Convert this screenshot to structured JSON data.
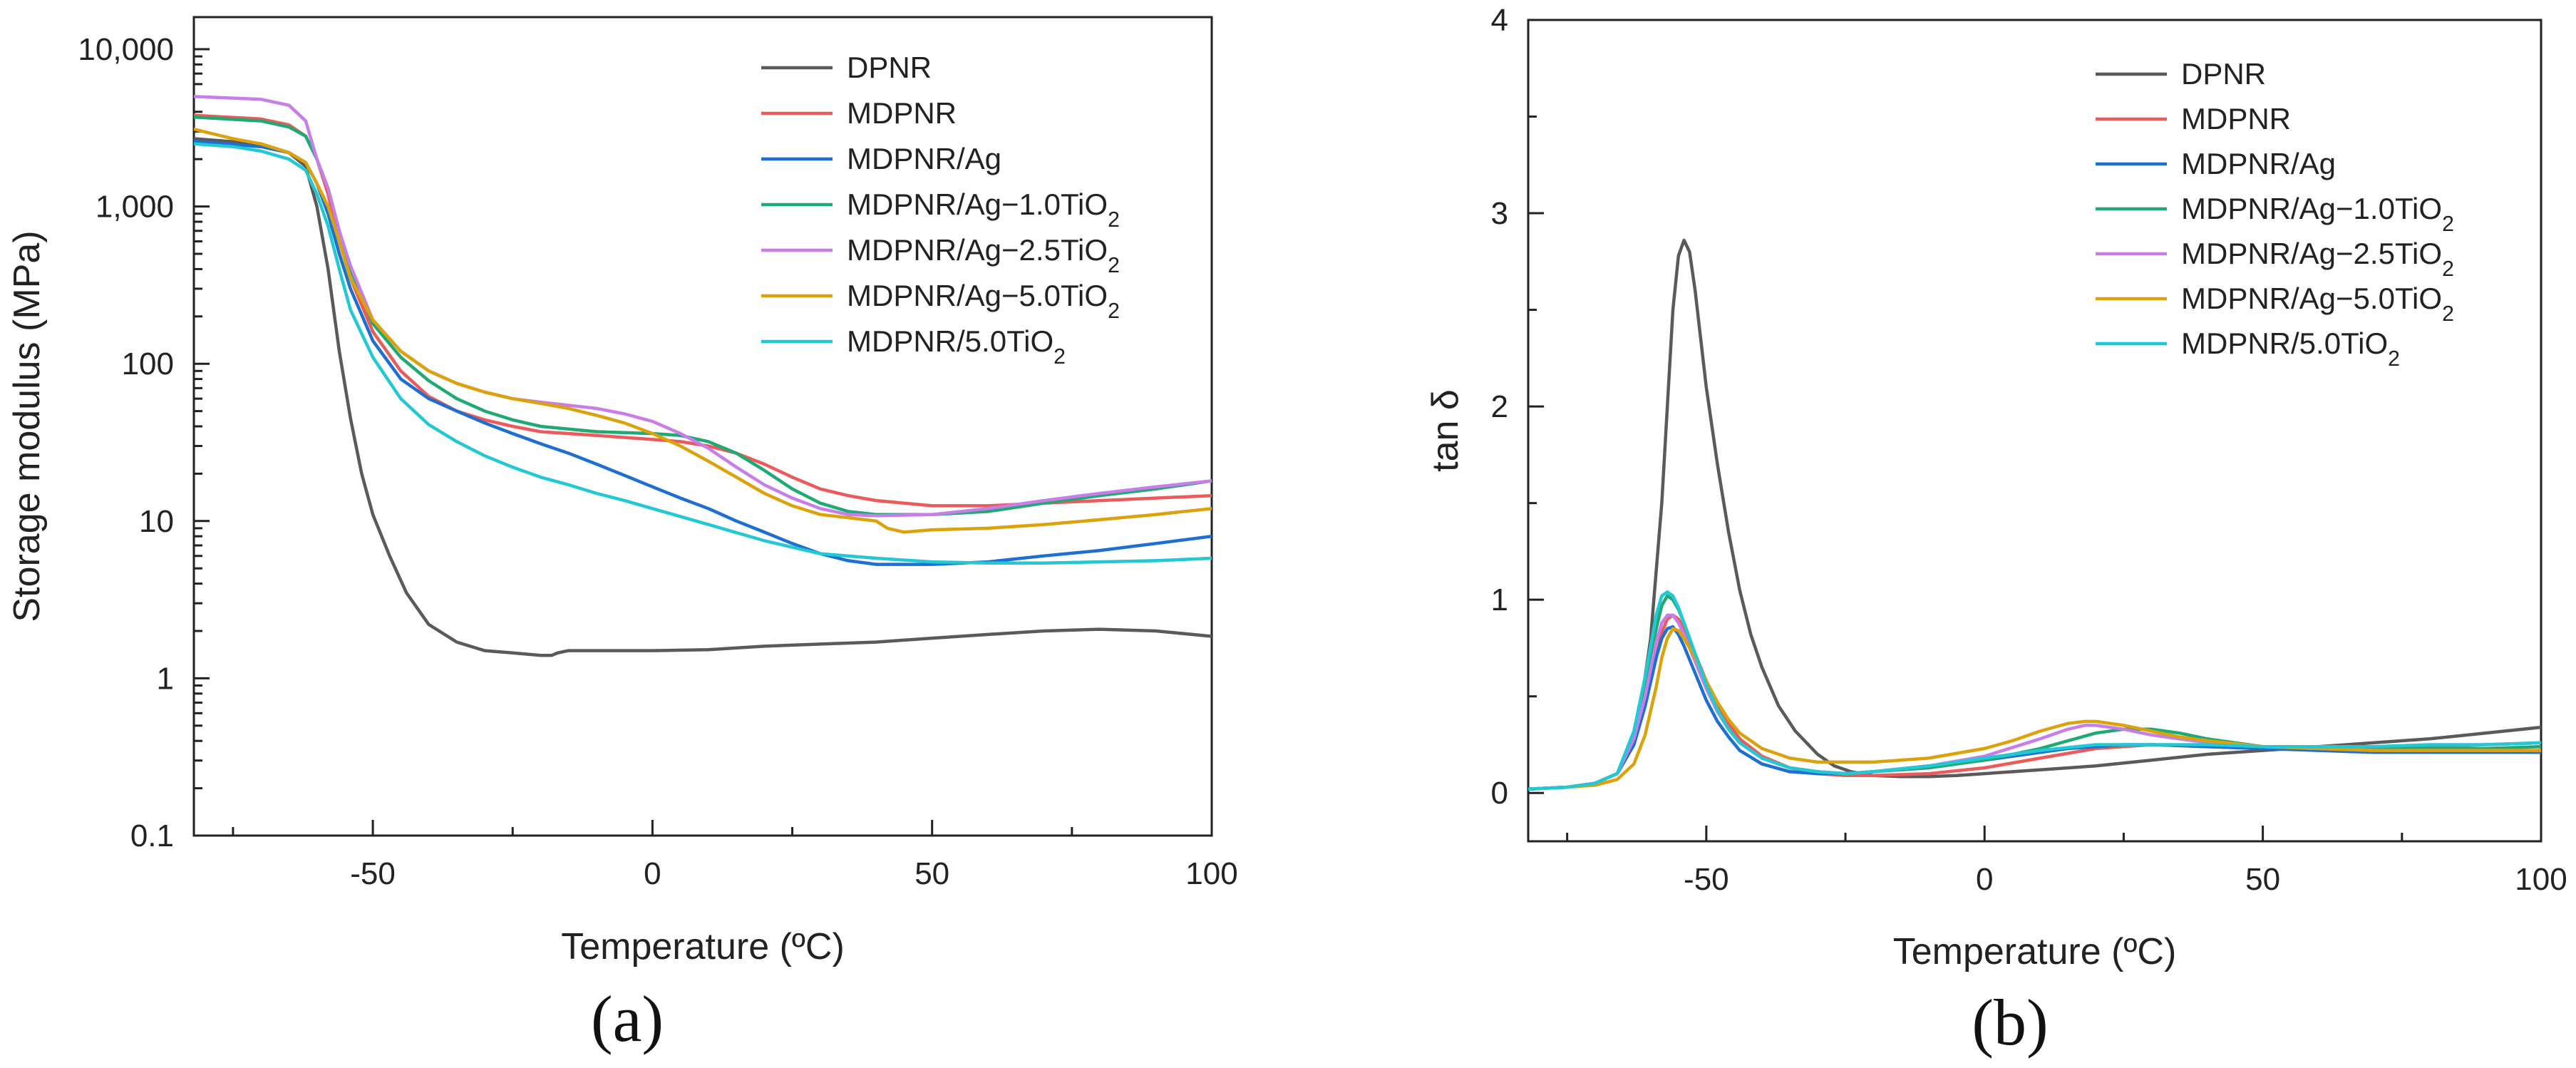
{
  "chart_data": [
    {
      "type": "line",
      "panel_label": "(a)",
      "xlabel": "Temperature (ºC)",
      "ylabel": "Storage modulus (MPa)",
      "xlim": [
        -82,
        100
      ],
      "ylim": [
        0.1,
        16000
      ],
      "yscale": "log",
      "grid": false,
      "legend_position": "top-right",
      "xticks": [
        -50,
        0,
        50,
        100
      ],
      "xtick_labels": [
        "-50",
        "0",
        "50",
        "100"
      ],
      "yticks": [
        0.1,
        1,
        10,
        100,
        1000,
        10000
      ],
      "ytick_labels": [
        "0.1",
        "1",
        "10",
        "100",
        "1,000",
        "10,000"
      ],
      "series": [
        {
          "name": "DPNR",
          "color": "#5a5a5a",
          "x": [
            -82,
            -70,
            -65,
            -62,
            -60,
            -58,
            -56,
            -54,
            -52,
            -50,
            -47,
            -44,
            -40,
            -35,
            -30,
            -25,
            -20,
            -18,
            -17,
            -15,
            -10,
            0,
            10,
            20,
            30,
            40,
            50,
            60,
            70,
            80,
            90,
            100
          ],
          "y": [
            2700,
            2500,
            2200,
            1800,
            1000,
            400,
            120,
            45,
            20,
            11,
            6,
            3.5,
            2.2,
            1.7,
            1.5,
            1.45,
            1.4,
            1.4,
            1.45,
            1.5,
            1.5,
            1.5,
            1.52,
            1.6,
            1.65,
            1.7,
            1.8,
            1.9,
            2.0,
            2.05,
            2.0,
            1.85
          ]
        },
        {
          "name": "MDPNR",
          "color": "#ec5b5b",
          "x": [
            -82,
            -70,
            -65,
            -62,
            -60,
            -58,
            -56,
            -54,
            -50,
            -45,
            -40,
            -35,
            -30,
            -25,
            -20,
            -10,
            0,
            5,
            10,
            15,
            20,
            25,
            30,
            35,
            40,
            50,
            60,
            70,
            80,
            90,
            100
          ],
          "y": [
            3800,
            3600,
            3300,
            2800,
            2000,
            1200,
            600,
            350,
            160,
            90,
            62,
            50,
            44,
            40,
            37,
            35,
            33,
            32,
            30,
            27,
            23,
            19,
            16,
            14.5,
            13.5,
            12.5,
            12.5,
            13,
            13.5,
            14,
            14.5
          ]
        },
        {
          "name": "MDPNR/Ag",
          "color": "#1d6fd1",
          "x": [
            -82,
            -70,
            -65,
            -62,
            -60,
            -58,
            -56,
            -54,
            -50,
            -45,
            -40,
            -35,
            -30,
            -25,
            -20,
            -15,
            -10,
            -5,
            0,
            5,
            10,
            15,
            20,
            25,
            30,
            35,
            40,
            50,
            60,
            70,
            80,
            90,
            100
          ],
          "y": [
            2600,
            2400,
            2200,
            1900,
            1400,
            900,
            500,
            300,
            140,
            80,
            60,
            50,
            42,
            36,
            31,
            27,
            23,
            19.5,
            16.5,
            14,
            12,
            10,
            8.5,
            7.2,
            6.2,
            5.6,
            5.3,
            5.3,
            5.5,
            6,
            6.5,
            7.2,
            8
          ]
        },
        {
          "name": "MDPNR/Ag−1.0TiO2",
          "color": "#1faa73",
          "x": [
            -82,
            -70,
            -65,
            -62,
            -60,
            -58,
            -56,
            -54,
            -50,
            -45,
            -40,
            -35,
            -30,
            -25,
            -20,
            -10,
            0,
            5,
            10,
            15,
            20,
            25,
            30,
            35,
            40,
            50,
            60,
            70,
            80,
            90,
            100
          ],
          "y": [
            3700,
            3500,
            3200,
            2800,
            2000,
            1300,
            700,
            400,
            180,
            110,
            78,
            60,
            50,
            44,
            40,
            37,
            36,
            35,
            32,
            27,
            21,
            16,
            13,
            11.5,
            11,
            11,
            11.5,
            13,
            14.5,
            16,
            18
          ]
        },
        {
          "name": "MDPNR/Ag−2.5TiO2",
          "color": "#c77ee6",
          "x": [
            -82,
            -70,
            -65,
            -62,
            -60,
            -58,
            -56,
            -54,
            -50,
            -45,
            -40,
            -35,
            -30,
            -25,
            -20,
            -10,
            -5,
            0,
            5,
            10,
            15,
            20,
            25,
            30,
            35,
            40,
            50,
            60,
            70,
            80,
            90,
            100
          ],
          "y": [
            5000,
            4800,
            4400,
            3500,
            2000,
            1300,
            700,
            420,
            190,
            120,
            90,
            75,
            66,
            60,
            57,
            52,
            48,
            43,
            36,
            29,
            22,
            17,
            14,
            12,
            11,
            10.8,
            11,
            12,
            13.5,
            15,
            16.5,
            18
          ]
        },
        {
          "name": "MDPNR/Ag−5.0TiO2",
          "color": "#dca20c",
          "x": [
            -82,
            -75,
            -70,
            -65,
            -62,
            -60,
            -58,
            -56,
            -54,
            -50,
            -45,
            -40,
            -35,
            -30,
            -25,
            -20,
            -15,
            -10,
            -5,
            0,
            5,
            10,
            15,
            20,
            25,
            30,
            35,
            40,
            42,
            45,
            50,
            60,
            70,
            80,
            90,
            100
          ],
          "y": [
            3100,
            2700,
            2500,
            2200,
            1900,
            1400,
            1000,
            600,
            350,
            190,
            120,
            90,
            75,
            66,
            60,
            56,
            52,
            47,
            42,
            36,
            30,
            24,
            19,
            15,
            12.5,
            11,
            10.5,
            10,
            9,
            8.5,
            8.8,
            9,
            9.5,
            10.2,
            11,
            12
          ]
        },
        {
          "name": "MDPNR/5.0TiO2",
          "color": "#22c8d3",
          "x": [
            -82,
            -75,
            -70,
            -65,
            -62,
            -60,
            -58,
            -56,
            -54,
            -50,
            -45,
            -40,
            -35,
            -30,
            -25,
            -20,
            -15,
            -10,
            -5,
            0,
            10,
            20,
            30,
            40,
            50,
            60,
            70,
            80,
            90,
            100
          ],
          "y": [
            2500,
            2400,
            2250,
            2000,
            1700,
            1200,
            750,
            400,
            220,
            110,
            60,
            41,
            32,
            26,
            22,
            19,
            17,
            15,
            13.5,
            12,
            9.5,
            7.5,
            6.2,
            5.8,
            5.5,
            5.4,
            5.4,
            5.5,
            5.6,
            5.8
          ]
        }
      ]
    },
    {
      "type": "line",
      "panel_label": "(b)",
      "xlabel": "Temperature (ºC)",
      "ylabel": "tan δ",
      "xlim": [
        -82,
        100
      ],
      "ylim": [
        -0.25,
        4
      ],
      "grid": false,
      "legend_position": "top-right",
      "xticks": [
        -50,
        0,
        50,
        100
      ],
      "xtick_labels": [
        "-50",
        "0",
        "50",
        "100"
      ],
      "yticks": [
        0,
        1,
        2,
        3,
        4
      ],
      "ytick_labels": [
        "0",
        "1",
        "2",
        "3",
        "4"
      ],
      "series": [
        {
          "name": "DPNR",
          "color": "#5a5a5a",
          "x": [
            -82,
            -75,
            -70,
            -66,
            -64,
            -62,
            -60,
            -58,
            -57,
            -56,
            -55,
            -54,
            -53,
            -52,
            -51,
            -50,
            -48,
            -46,
            -44,
            -42,
            -40,
            -37,
            -34,
            -30,
            -27,
            -24,
            -20,
            -15,
            -10,
            -5,
            0,
            10,
            20,
            30,
            40,
            50,
            60,
            70,
            80,
            90,
            100
          ],
          "y": [
            0.02,
            0.03,
            0.05,
            0.1,
            0.2,
            0.4,
            0.8,
            1.5,
            2.0,
            2.5,
            2.78,
            2.86,
            2.8,
            2.6,
            2.35,
            2.1,
            1.7,
            1.35,
            1.05,
            0.82,
            0.65,
            0.45,
            0.32,
            0.2,
            0.14,
            0.11,
            0.09,
            0.085,
            0.085,
            0.09,
            0.1,
            0.12,
            0.14,
            0.17,
            0.2,
            0.22,
            0.24,
            0.26,
            0.28,
            0.31,
            0.34
          ]
        },
        {
          "name": "MDPNR",
          "color": "#ec5b5b",
          "x": [
            -82,
            -75,
            -70,
            -66,
            -63,
            -61,
            -59,
            -58,
            -57,
            -56,
            -55,
            -54,
            -52,
            -50,
            -48,
            -46,
            -44,
            -40,
            -35,
            -30,
            -25,
            -20,
            -10,
            0,
            10,
            20,
            25,
            30,
            40,
            50,
            60,
            70,
            80,
            90,
            100
          ],
          "y": [
            0.02,
            0.03,
            0.05,
            0.1,
            0.25,
            0.45,
            0.7,
            0.83,
            0.9,
            0.92,
            0.9,
            0.85,
            0.72,
            0.58,
            0.46,
            0.36,
            0.28,
            0.19,
            0.13,
            0.1,
            0.09,
            0.09,
            0.1,
            0.13,
            0.18,
            0.23,
            0.24,
            0.25,
            0.24,
            0.23,
            0.23,
            0.23,
            0.24,
            0.25,
            0.26
          ]
        },
        {
          "name": "MDPNR/Ag",
          "color": "#1d6fd1",
          "x": [
            -82,
            -75,
            -70,
            -66,
            -63,
            -61,
            -59,
            -58,
            -57,
            -56,
            -55,
            -54,
            -52,
            -50,
            -48,
            -46,
            -44,
            -40,
            -35,
            -30,
            -25,
            -20,
            -10,
            0,
            10,
            15,
            20,
            25,
            30,
            40,
            50,
            60,
            70,
            80,
            90,
            100
          ],
          "y": [
            0.02,
            0.03,
            0.05,
            0.1,
            0.25,
            0.45,
            0.7,
            0.8,
            0.85,
            0.86,
            0.82,
            0.76,
            0.62,
            0.48,
            0.37,
            0.29,
            0.22,
            0.15,
            0.11,
            0.1,
            0.1,
            0.11,
            0.14,
            0.17,
            0.21,
            0.23,
            0.24,
            0.25,
            0.25,
            0.24,
            0.23,
            0.22,
            0.21,
            0.21,
            0.21,
            0.21
          ]
        },
        {
          "name": "MDPNR/Ag−1.0TiO2",
          "color": "#1faa73",
          "x": [
            -82,
            -75,
            -70,
            -66,
            -63,
            -61,
            -59,
            -58,
            -57,
            -56,
            -55,
            -54,
            -52,
            -50,
            -48,
            -46,
            -44,
            -40,
            -35,
            -30,
            -25,
            -20,
            -10,
            0,
            10,
            15,
            20,
            25,
            30,
            35,
            40,
            50,
            60,
            70,
            80,
            90,
            100
          ],
          "y": [
            0.02,
            0.03,
            0.05,
            0.1,
            0.3,
            0.55,
            0.85,
            0.97,
            1.02,
            1.0,
            0.95,
            0.88,
            0.72,
            0.56,
            0.43,
            0.33,
            0.26,
            0.18,
            0.13,
            0.11,
            0.1,
            0.11,
            0.13,
            0.17,
            0.23,
            0.27,
            0.31,
            0.33,
            0.33,
            0.31,
            0.28,
            0.24,
            0.23,
            0.23,
            0.23,
            0.23,
            0.24
          ]
        },
        {
          "name": "MDPNR/Ag−2.5TiO2",
          "color": "#c77ee6",
          "x": [
            -82,
            -75,
            -70,
            -66,
            -63,
            -61,
            -59,
            -58,
            -57,
            -56,
            -55,
            -54,
            -52,
            -50,
            -48,
            -46,
            -44,
            -40,
            -35,
            -30,
            -25,
            -20,
            -10,
            0,
            10,
            15,
            18,
            20,
            25,
            30,
            35,
            40,
            50,
            60,
            70,
            80,
            90,
            100
          ],
          "y": [
            0.02,
            0.03,
            0.05,
            0.1,
            0.28,
            0.5,
            0.78,
            0.88,
            0.92,
            0.92,
            0.88,
            0.82,
            0.68,
            0.54,
            0.42,
            0.33,
            0.26,
            0.18,
            0.13,
            0.11,
            0.1,
            0.11,
            0.14,
            0.19,
            0.28,
            0.33,
            0.35,
            0.35,
            0.33,
            0.3,
            0.28,
            0.26,
            0.24,
            0.23,
            0.22,
            0.22,
            0.22,
            0.22
          ]
        },
        {
          "name": "MDPNR/Ag−5.0TiO2",
          "color": "#dca20c",
          "x": [
            -82,
            -75,
            -70,
            -66,
            -63,
            -61,
            -59,
            -58,
            -57,
            -56,
            -55,
            -54,
            -52,
            -50,
            -48,
            -46,
            -44,
            -40,
            -35,
            -30,
            -25,
            -20,
            -10,
            0,
            5,
            10,
            15,
            18,
            20,
            25,
            30,
            35,
            40,
            50,
            60,
            70,
            80,
            90,
            100
          ],
          "y": [
            0.02,
            0.03,
            0.04,
            0.07,
            0.15,
            0.3,
            0.55,
            0.7,
            0.8,
            0.85,
            0.84,
            0.8,
            0.7,
            0.58,
            0.47,
            0.38,
            0.31,
            0.23,
            0.18,
            0.16,
            0.16,
            0.16,
            0.18,
            0.23,
            0.27,
            0.32,
            0.36,
            0.37,
            0.37,
            0.35,
            0.32,
            0.29,
            0.27,
            0.24,
            0.23,
            0.22,
            0.22,
            0.22,
            0.22
          ]
        },
        {
          "name": "MDPNR/5.0TiO2",
          "color": "#22c8d3",
          "x": [
            -82,
            -75,
            -70,
            -66,
            -63,
            -61,
            -59,
            -58,
            -57,
            -56,
            -55,
            -54,
            -52,
            -50,
            -48,
            -46,
            -44,
            -40,
            -35,
            -30,
            -25,
            -20,
            -10,
            0,
            10,
            20,
            25,
            30,
            40,
            50,
            60,
            70,
            80,
            90,
            100
          ],
          "y": [
            0.02,
            0.03,
            0.05,
            0.1,
            0.32,
            0.6,
            0.92,
            1.02,
            1.04,
            1.02,
            0.96,
            0.88,
            0.72,
            0.56,
            0.43,
            0.33,
            0.26,
            0.18,
            0.13,
            0.11,
            0.1,
            0.11,
            0.14,
            0.18,
            0.22,
            0.25,
            0.25,
            0.25,
            0.25,
            0.24,
            0.24,
            0.24,
            0.25,
            0.25,
            0.26
          ]
        }
      ]
    }
  ]
}
